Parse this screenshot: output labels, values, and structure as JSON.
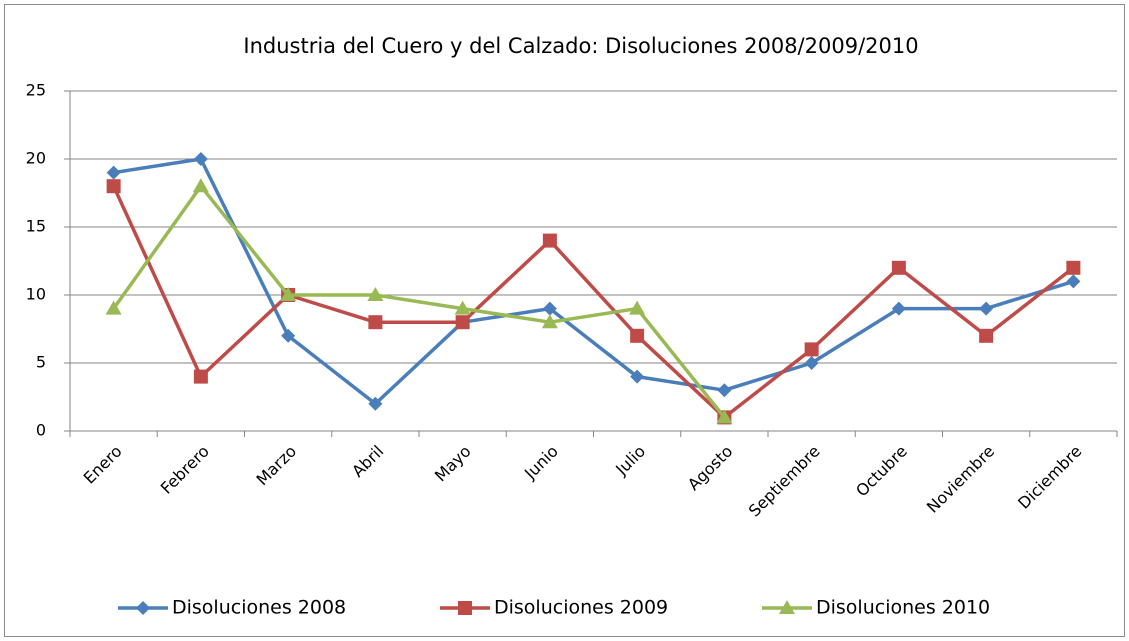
{
  "chart_data": {
    "type": "line",
    "title": "Industria del Cuero y del Calzado: Disoluciones 2008/2009/2010",
    "categories": [
      "Enero",
      "Febrero",
      "Marzo",
      "Abril",
      "Mayo",
      "Junio",
      "Julio",
      "Agosto",
      "Septiembre",
      "Octubre",
      "Noviembre",
      "Diciembre"
    ],
    "series": [
      {
        "name": "Disoluciones 2008",
        "color": "#4a7ebb",
        "marker": "diamond",
        "values": [
          19,
          20,
          7,
          2,
          8,
          9,
          4,
          3,
          5,
          9,
          9,
          11
        ]
      },
      {
        "name": "Disoluciones 2009",
        "color": "#be4b48",
        "marker": "square",
        "values": [
          18,
          4,
          10,
          8,
          8,
          14,
          7,
          1,
          6,
          12,
          7,
          12
        ]
      },
      {
        "name": "Disoluciones 2010",
        "color": "#98b954",
        "marker": "triangle",
        "values": [
          9,
          18,
          10,
          10,
          9,
          8,
          9,
          1,
          null,
          null,
          null,
          null
        ]
      }
    ],
    "ylim": [
      0,
      25
    ],
    "yticks": [
      0,
      5,
      10,
      15,
      20,
      25
    ],
    "grid": true,
    "legend": "bottom"
  }
}
